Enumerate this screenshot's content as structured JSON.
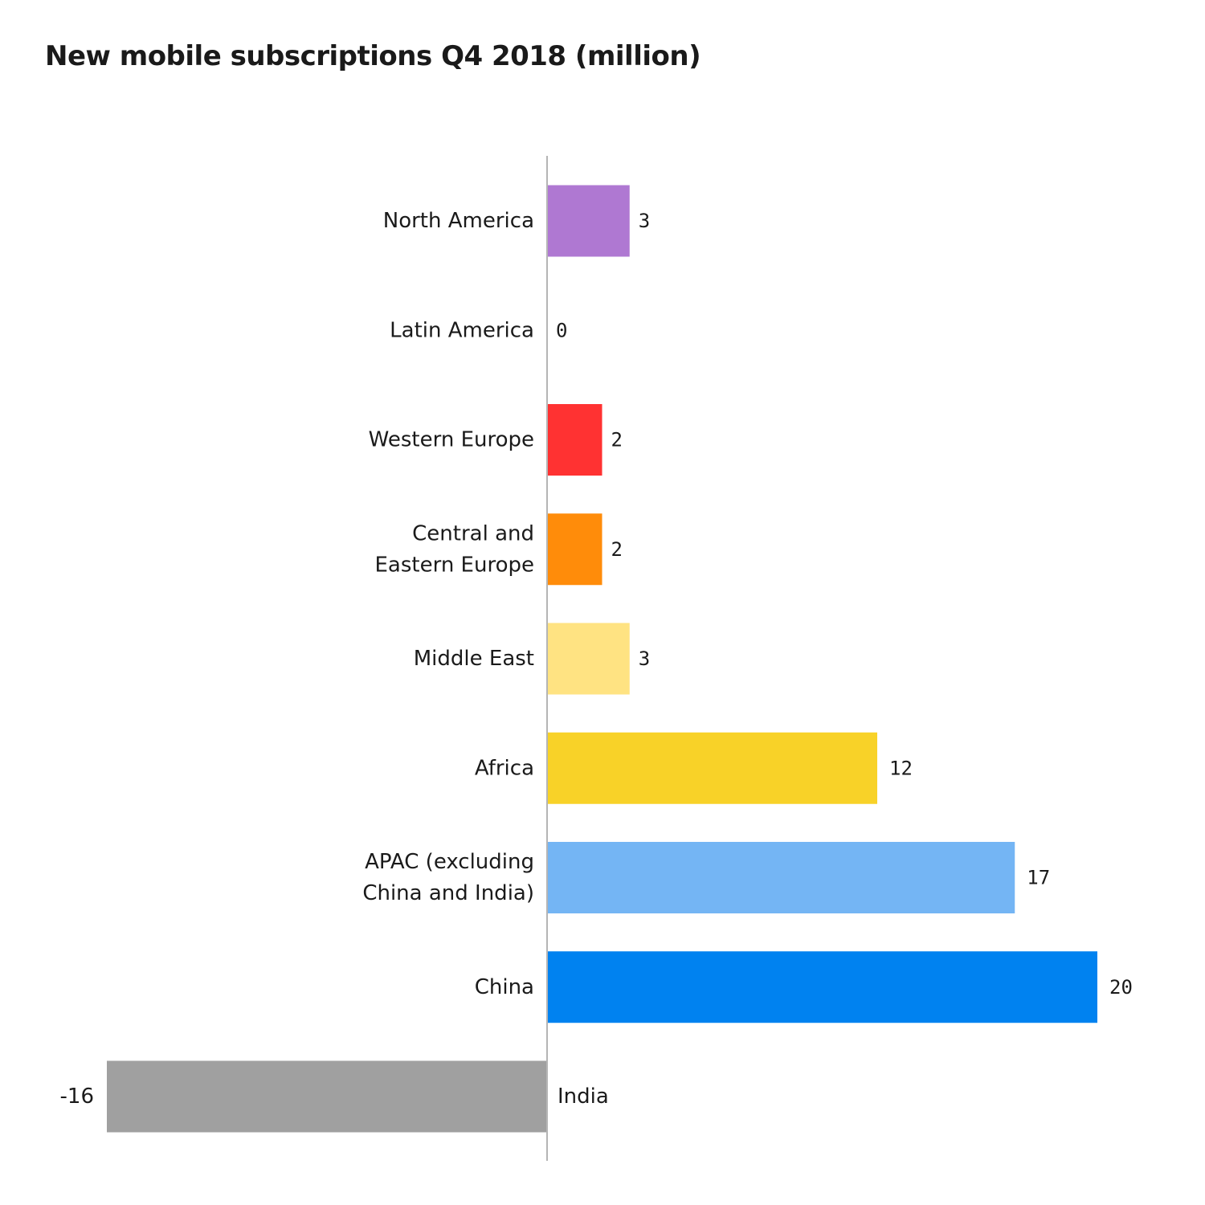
{
  "chart_data": {
    "type": "bar",
    "orientation": "horizontal",
    "title": "New mobile subscriptions Q4 2018 (million)",
    "xlabel": "",
    "ylabel": "",
    "xlim": [
      -16,
      20
    ],
    "grid": false,
    "legend": "none",
    "categories": [
      "North America",
      "Latin America",
      "Western Europe",
      "Central and Eastern Europe",
      "Middle East",
      "Africa",
      "APAC (excluding China and India)",
      "China",
      "India"
    ],
    "category_lines": [
      [
        "North America"
      ],
      [
        "Latin America"
      ],
      [
        "Western Europe"
      ],
      [
        "Central and",
        "Eastern Europe"
      ],
      [
        "Middle East"
      ],
      [
        "Africa"
      ],
      [
        "APAC (excluding",
        "China and India)"
      ],
      [
        "China"
      ],
      [
        "India"
      ]
    ],
    "values": [
      3,
      0,
      2,
      2,
      3,
      12,
      17,
      20,
      -16
    ],
    "value_labels": [
      "3",
      "0",
      "2",
      "2",
      "3",
      "12",
      "17",
      "20",
      "-16"
    ],
    "colors": [
      "#AF78D2",
      "#AF78D2",
      "#FF3232",
      "#FF8C0A",
      "#FFE382",
      "#F8D228",
      "#74B5F4",
      "#0082F0",
      "#A0A0A0"
    ]
  }
}
